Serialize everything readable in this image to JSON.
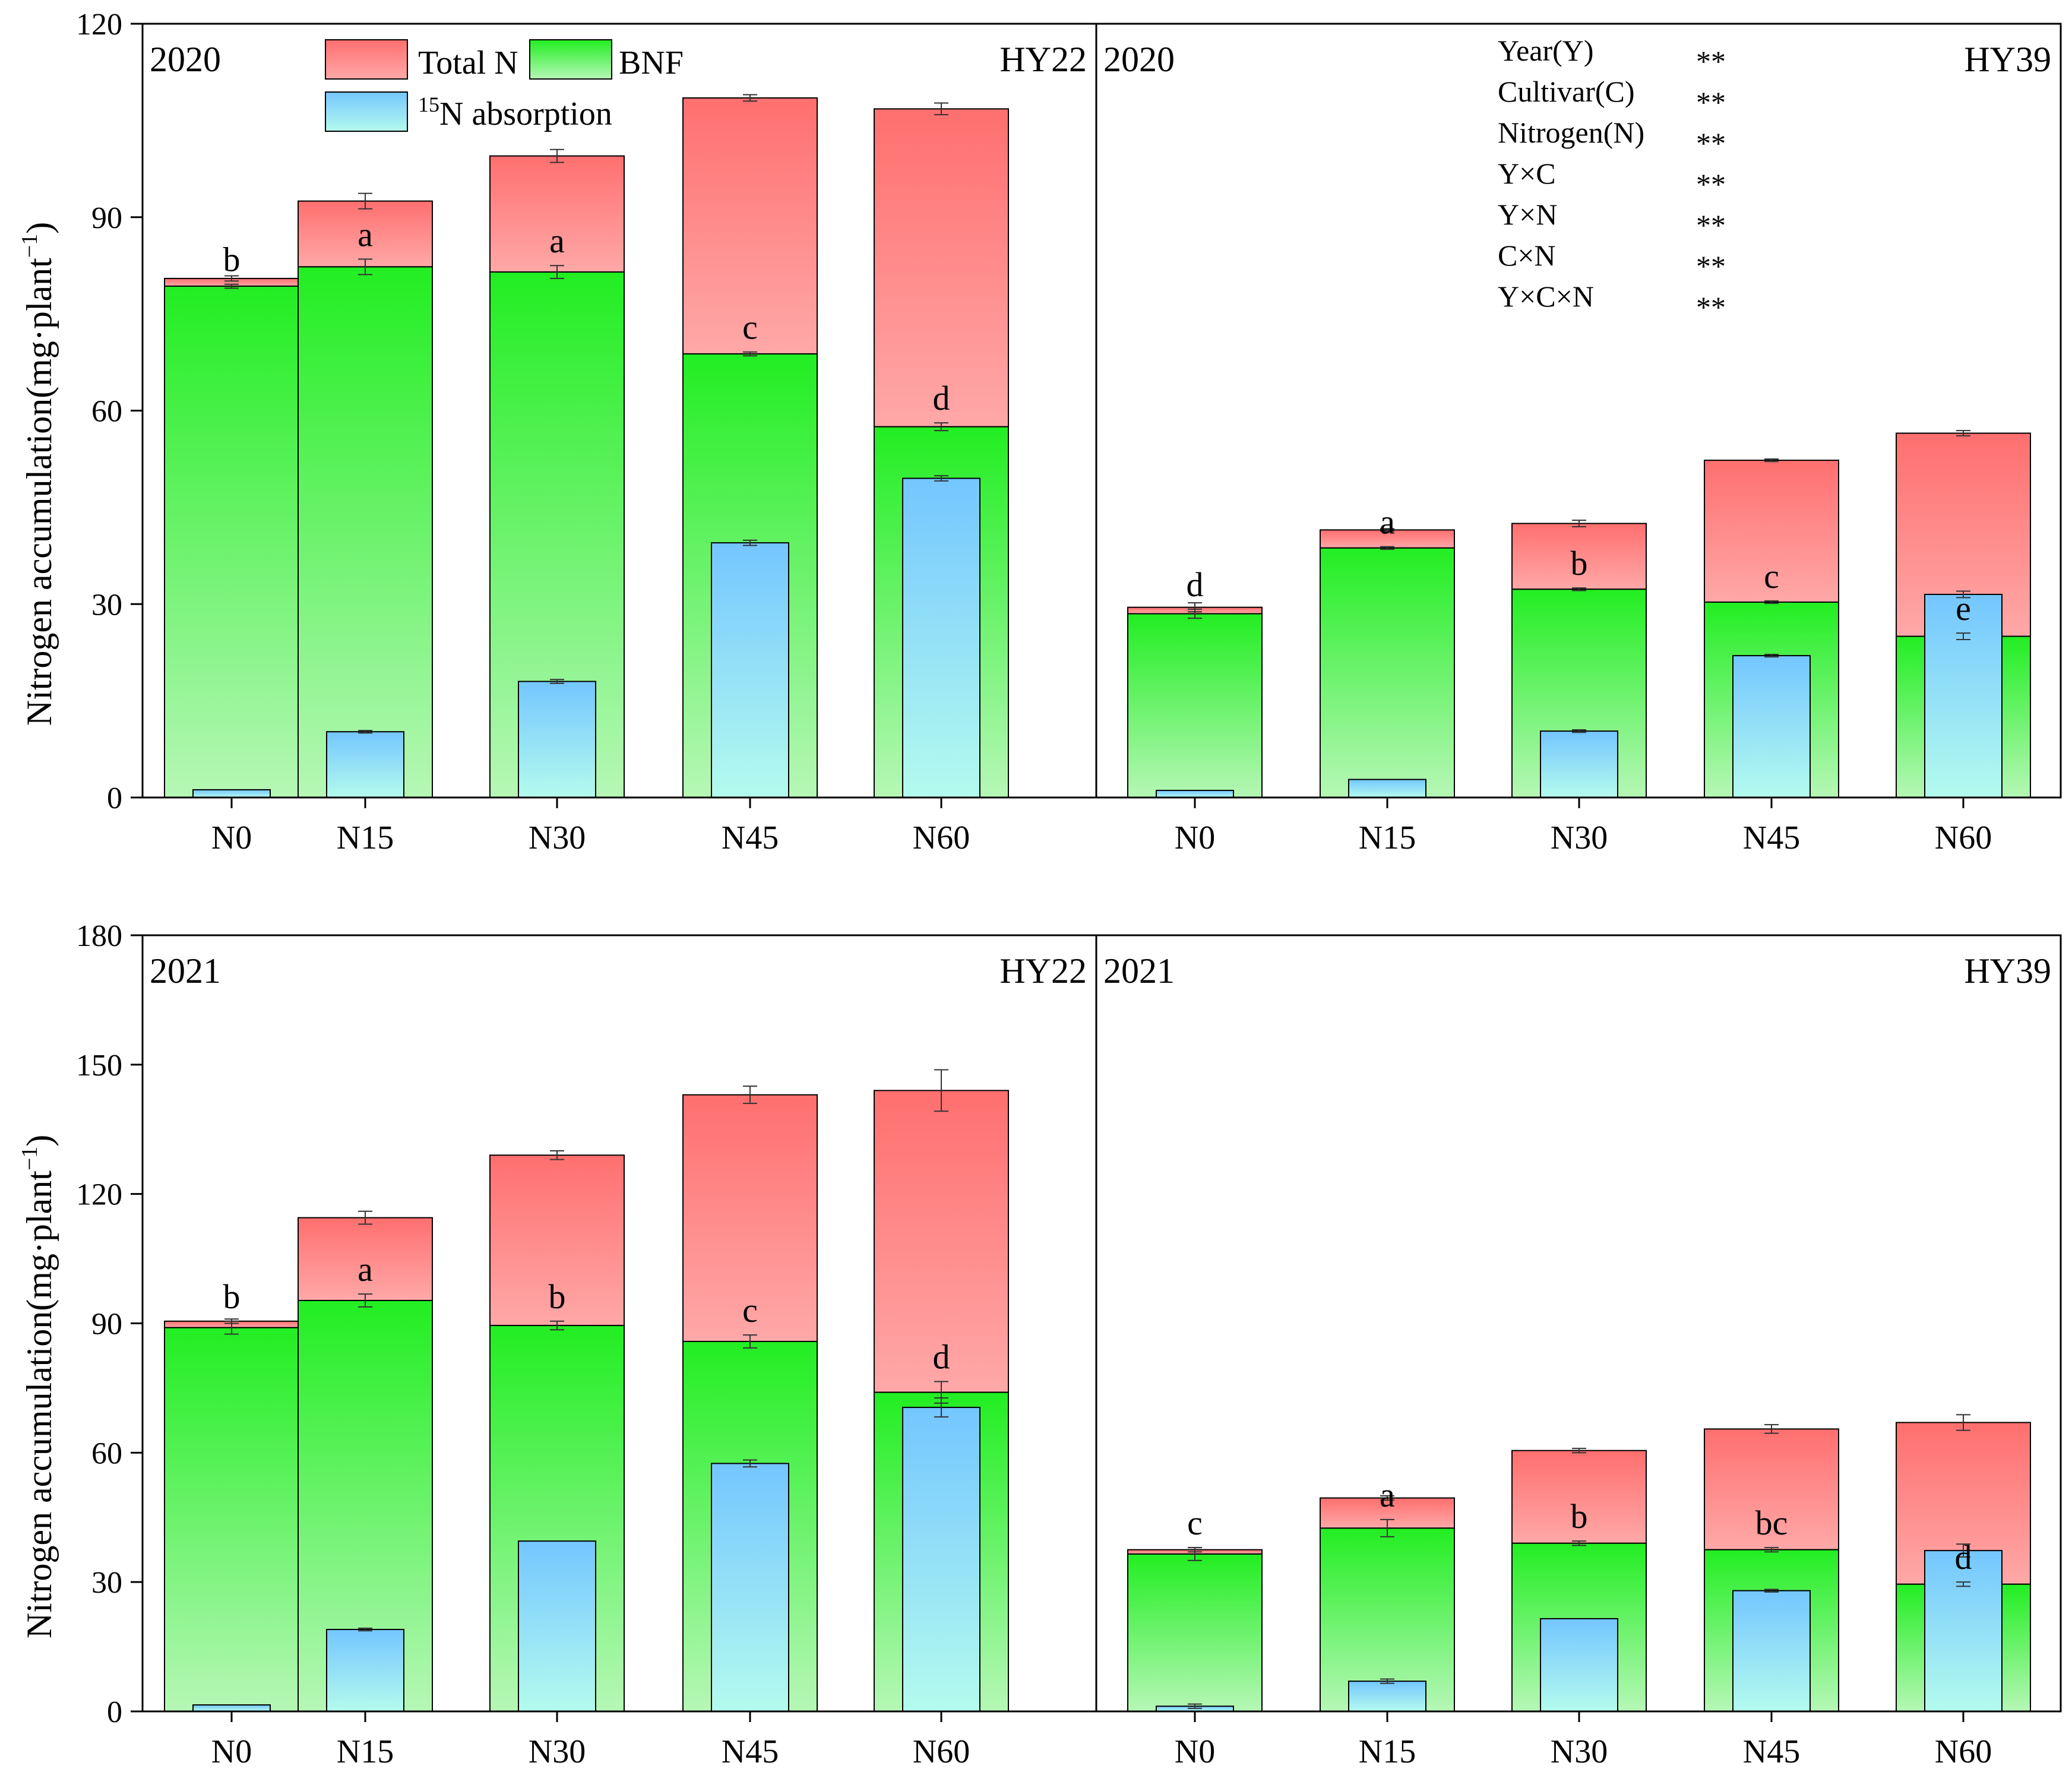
{
  "colors": {
    "total_top": "#ff6f6f",
    "total_bottom": "#ffa8a8",
    "bnf_top": "#22ee22",
    "bnf_bottom": "#b6f7b6",
    "n15_top": "#74c6ff",
    "n15_bottom": "#b4fbee"
  },
  "legend": {
    "total_n": "Total N",
    "bnf": "BNF",
    "n15_sup": "15",
    "n15_rest": "N absorption"
  },
  "y_axis": {
    "label_main": "Nitrogen accumulation(mg·plant",
    "label_sup": "−1",
    "label_close": ")"
  },
  "chart_data": [
    {
      "type": "bar",
      "year": "2020",
      "cultivar": "HY22",
      "categories": [
        "N0",
        "N15",
        "N30",
        "N45",
        "N60"
      ],
      "ylim": [
        0,
        120
      ],
      "yticks": [
        0,
        30,
        60,
        90,
        120
      ],
      "ytick_labels": [
        "0",
        "30",
        "60",
        "90",
        "120"
      ],
      "series": [
        {
          "name": "Total N",
          "values": [
            80.5,
            92.5,
            99.5,
            108.5,
            106.8
          ],
          "errors": [
            0.4,
            1.2,
            1.0,
            0.5,
            0.9
          ]
        },
        {
          "name": "BNF",
          "values": [
            79.3,
            82.3,
            81.5,
            68.8,
            57.5
          ],
          "errors": [
            0.3,
            1.2,
            1.0,
            0.3,
            0.6
          ]
        },
        {
          "name": "15N absorption",
          "values": [
            1.2,
            10.2,
            18.0,
            39.5,
            49.5
          ],
          "errors": [
            0,
            0.2,
            0.3,
            0.4,
            0.4
          ]
        }
      ],
      "letters": [
        "b",
        "a",
        "a",
        "c",
        "d"
      ]
    },
    {
      "type": "bar",
      "year": "2020",
      "cultivar": "HY39",
      "categories": [
        "N0",
        "N15",
        "N30",
        "N45",
        "N60"
      ],
      "ylim": [
        0,
        120
      ],
      "yticks": [
        0,
        30,
        60,
        90,
        120
      ],
      "ytick_labels": [],
      "series": [
        {
          "name": "Total N",
          "values": [
            29.5,
            41.5,
            42.5,
            52.3,
            56.5
          ],
          "errors": [
            0.7,
            0.2,
            0.5,
            0.2,
            0.4
          ]
        },
        {
          "name": "BNF",
          "values": [
            28.5,
            38.7,
            32.3,
            30.3,
            25.0
          ],
          "errors": [
            0.7,
            0.2,
            0.2,
            0.2,
            0.5
          ]
        },
        {
          "name": "15N absorption",
          "values": [
            1.1,
            2.8,
            10.3,
            22.0,
            31.5
          ],
          "errors": [
            0,
            0,
            0.2,
            0.2,
            0.5
          ]
        }
      ],
      "letters": [
        "d",
        "a",
        "b",
        "c",
        "e"
      ],
      "stats": [
        {
          "label": "Year(Y)",
          "value": "**"
        },
        {
          "label": "Cultivar(C)",
          "value": "**"
        },
        {
          "label": "Nitrogen(N)",
          "value": "**"
        },
        {
          "label": "Y×C",
          "value": "**"
        },
        {
          "label": "Y×N",
          "value": "**"
        },
        {
          "label": "C×N",
          "value": "**"
        },
        {
          "label": "Y×C×N",
          "value": "**"
        }
      ]
    },
    {
      "type": "bar",
      "year": "2021",
      "cultivar": "HY22",
      "categories": [
        "N0",
        "N15",
        "N30",
        "N45",
        "N60"
      ],
      "ylim": [
        0,
        180
      ],
      "yticks": [
        0,
        30,
        60,
        90,
        120,
        150,
        180
      ],
      "ytick_labels": [
        "0",
        "30",
        "60",
        "90",
        "120",
        "150",
        "180"
      ],
      "series": [
        {
          "name": "Total N",
          "values": [
            90.5,
            114.5,
            129.0,
            143.0,
            144.0
          ],
          "errors": [
            0.5,
            1.5,
            1.0,
            2.0,
            4.8
          ]
        },
        {
          "name": "BNF",
          "values": [
            89.0,
            95.3,
            89.5,
            85.8,
            74.0
          ],
          "errors": [
            1.5,
            1.5,
            1.0,
            1.5,
            2.5
          ]
        },
        {
          "name": "15N absorption",
          "values": [
            1.5,
            19.0,
            39.5,
            57.5,
            70.5
          ],
          "errors": [
            0,
            0.3,
            0,
            0.8,
            2.2
          ]
        }
      ],
      "letters": [
        "b",
        "a",
        "b",
        "c",
        "d"
      ]
    },
    {
      "type": "bar",
      "year": "2021",
      "cultivar": "HY39",
      "categories": [
        "N0",
        "N15",
        "N30",
        "N45",
        "N60"
      ],
      "ylim": [
        0,
        180
      ],
      "yticks": [
        0,
        30,
        60,
        90,
        120,
        150,
        180
      ],
      "ytick_labels": [],
      "series": [
        {
          "name": "Total N",
          "values": [
            37.5,
            49.5,
            60.5,
            65.5,
            67.0
          ],
          "errors": [
            0.5,
            0.5,
            0.5,
            1.0,
            1.8
          ]
        },
        {
          "name": "BNF",
          "values": [
            36.5,
            42.5,
            39.0,
            37.5,
            29.5
          ],
          "errors": [
            1.5,
            2.0,
            0.5,
            0.5,
            0.5
          ]
        },
        {
          "name": "15N absorption",
          "values": [
            1.2,
            7.0,
            21.5,
            28.0,
            37.3
          ],
          "errors": [
            0.5,
            0.5,
            0,
            0.3,
            1.5
          ]
        }
      ],
      "letters": [
        "c",
        "a",
        "b",
        "bc",
        "d"
      ]
    }
  ]
}
